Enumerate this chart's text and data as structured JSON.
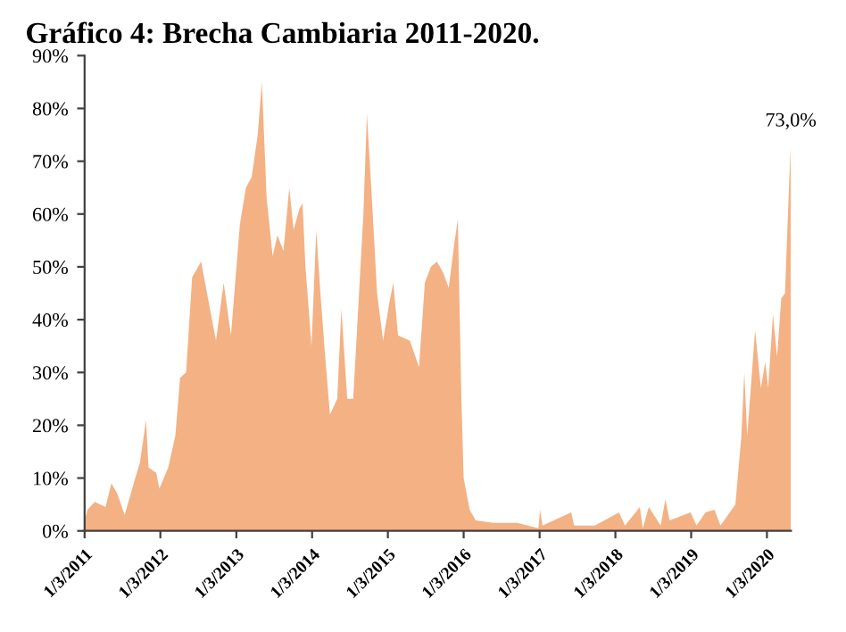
{
  "chart_data": {
    "type": "area",
    "title": "Gráfico 4: Brecha Cambiaria 2011-2020.",
    "x": [
      "2011-01-03",
      "2011-01-17",
      "2011-02-21",
      "2011-04-14",
      "2011-05-12",
      "2011-06-10",
      "2011-07-15",
      "2011-09-04",
      "2011-09-27",
      "2011-10-26",
      "2011-11-07",
      "2011-12-14",
      "2011-12-29",
      "2012-02-10",
      "2012-03-15",
      "2012-04-07",
      "2012-05-06",
      "2012-06-04",
      "2012-07-17",
      "2012-08-29",
      "2012-09-27",
      "2012-11-03",
      "2012-12-08",
      "2013-01-20",
      "2013-02-18",
      "2013-03-18",
      "2013-04-16",
      "2013-05-06",
      "2013-05-29",
      "2013-06-27",
      "2013-07-20",
      "2013-08-18",
      "2013-09-15",
      "2013-10-06",
      "2013-11-03",
      "2013-11-18",
      "2013-12-02",
      "2013-12-31",
      "2014-01-23",
      "2014-02-12",
      "2014-03-07",
      "2014-03-30",
      "2014-05-04",
      "2014-05-24",
      "2014-06-21",
      "2014-07-20",
      "2014-08-24",
      "2014-09-07",
      "2014-09-24",
      "2014-10-15",
      "2014-11-12",
      "2014-12-11",
      "2015-01-09",
      "2015-01-29",
      "2015-02-21",
      "2015-04-19",
      "2015-06-02",
      "2015-06-30",
      "2015-07-29",
      "2015-08-27",
      "2015-09-25",
      "2015-10-23",
      "2015-11-21",
      "2015-12-06",
      "2015-12-23",
      "2016-01-03",
      "2016-02-01",
      "2016-03-01",
      "2016-05-26",
      "2016-09-18",
      "2016-12-28",
      "2017-01-05",
      "2017-01-17",
      "2017-06-04",
      "2017-06-18",
      "2017-09-27",
      "2018-01-20",
      "2018-02-18",
      "2018-05-01",
      "2018-05-15",
      "2018-06-13",
      "2018-08-09",
      "2018-09-01",
      "2018-09-21",
      "2018-12-31",
      "2019-01-29",
      "2019-03-13",
      "2019-04-25",
      "2019-05-24",
      "2019-08-04",
      "2019-09-02",
      "2019-09-16",
      "2019-09-30",
      "2019-11-07",
      "2019-12-05",
      "2019-12-26",
      "2020-01-09",
      "2020-02-01",
      "2020-02-21",
      "2020-03-12",
      "2020-03-30",
      "2020-04-19",
      "2020-04-27"
    ],
    "series": [
      {
        "color": "#f4b183",
        "values": [
          2,
          4,
          5.5,
          4.5,
          9,
          7,
          3,
          10,
          13,
          21,
          12,
          11,
          8,
          12,
          18,
          29,
          30,
          48,
          51,
          42,
          36,
          47,
          37,
          58,
          65,
          67,
          75,
          85,
          63,
          52,
          56,
          53,
          65,
          57,
          61,
          62,
          50,
          35,
          57,
          45,
          33,
          22,
          25,
          42,
          25,
          25,
          50,
          60,
          79,
          65,
          45,
          36,
          43,
          47,
          37,
          36,
          31,
          47,
          50,
          51,
          49,
          46,
          55,
          59,
          25,
          10,
          4,
          2,
          1.5,
          1.5,
          0.5,
          4,
          1,
          3.5,
          1,
          1,
          3.5,
          1,
          4.5,
          0.5,
          4.5,
          1,
          6,
          2,
          3.5,
          1,
          3.5,
          4,
          1,
          5,
          18,
          30,
          18,
          38,
          27,
          32,
          27,
          41,
          33,
          44,
          45,
          66,
          73
        ]
      }
    ],
    "xlim": [
      "2011-01-03",
      "2020-04-28"
    ],
    "xticks": [
      {
        "value": "2011-01-03",
        "label": "1/3/2011"
      },
      {
        "value": "2012-01-03",
        "label": "1/3/2012"
      },
      {
        "value": "2013-01-03",
        "label": "1/3/2013"
      },
      {
        "value": "2014-01-03",
        "label": "1/3/2014"
      },
      {
        "value": "2015-01-03",
        "label": "1/3/2015"
      },
      {
        "value": "2016-01-03",
        "label": "1/3/2016"
      },
      {
        "value": "2017-01-03",
        "label": "1/3/2017"
      },
      {
        "value": "2018-01-03",
        "label": "1/3/2018"
      },
      {
        "value": "2019-01-03",
        "label": "1/3/2019"
      },
      {
        "value": "2020-01-03",
        "label": "1/3/2020"
      }
    ],
    "ylim": [
      0,
      90
    ],
    "yticks": [
      {
        "value": 0,
        "label": "0%"
      },
      {
        "value": 10,
        "label": "10%"
      },
      {
        "value": 20,
        "label": "20%"
      },
      {
        "value": 30,
        "label": "30%"
      },
      {
        "value": 40,
        "label": "40%"
      },
      {
        "value": 50,
        "label": "50%"
      },
      {
        "value": 60,
        "label": "60%"
      },
      {
        "value": 70,
        "label": "70%"
      },
      {
        "value": 80,
        "label": "80%"
      },
      {
        "value": 90,
        "label": "90%"
      }
    ],
    "annotations": [
      {
        "text": "73,0%",
        "x": "2020-04-27",
        "y": 73
      }
    ],
    "grid": false,
    "legend": false
  }
}
